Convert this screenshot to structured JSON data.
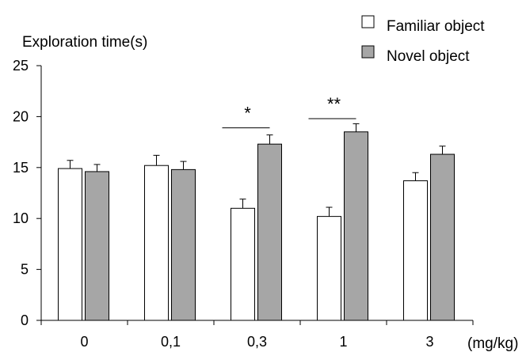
{
  "chart_data": {
    "type": "bar",
    "ylabel": "Exploration time(s)",
    "xunit": "(mg/kg)",
    "categories": [
      "0",
      "0,1",
      "0,3",
      "1",
      "3"
    ],
    "ylim": [
      0,
      25
    ],
    "yticks": [
      0,
      5,
      10,
      15,
      20,
      25
    ],
    "series": [
      {
        "name": "Familiar object",
        "color": "#ffffff",
        "values": [
          14.9,
          15.2,
          11.0,
          10.2,
          13.7
        ],
        "errors": [
          0.8,
          1.0,
          0.9,
          0.9,
          0.8
        ]
      },
      {
        "name": "Novel object",
        "color": "#a6a6a6",
        "values": [
          14.6,
          14.8,
          17.3,
          18.5,
          16.3
        ],
        "errors": [
          0.7,
          0.8,
          0.9,
          0.8,
          0.8
        ]
      }
    ],
    "significance": [
      {
        "category_index": 2,
        "label": "*",
        "y": 18.9
      },
      {
        "category_index": 3,
        "label": "**",
        "y": 19.8
      }
    ],
    "legend_position": "top-right",
    "grid": false
  }
}
